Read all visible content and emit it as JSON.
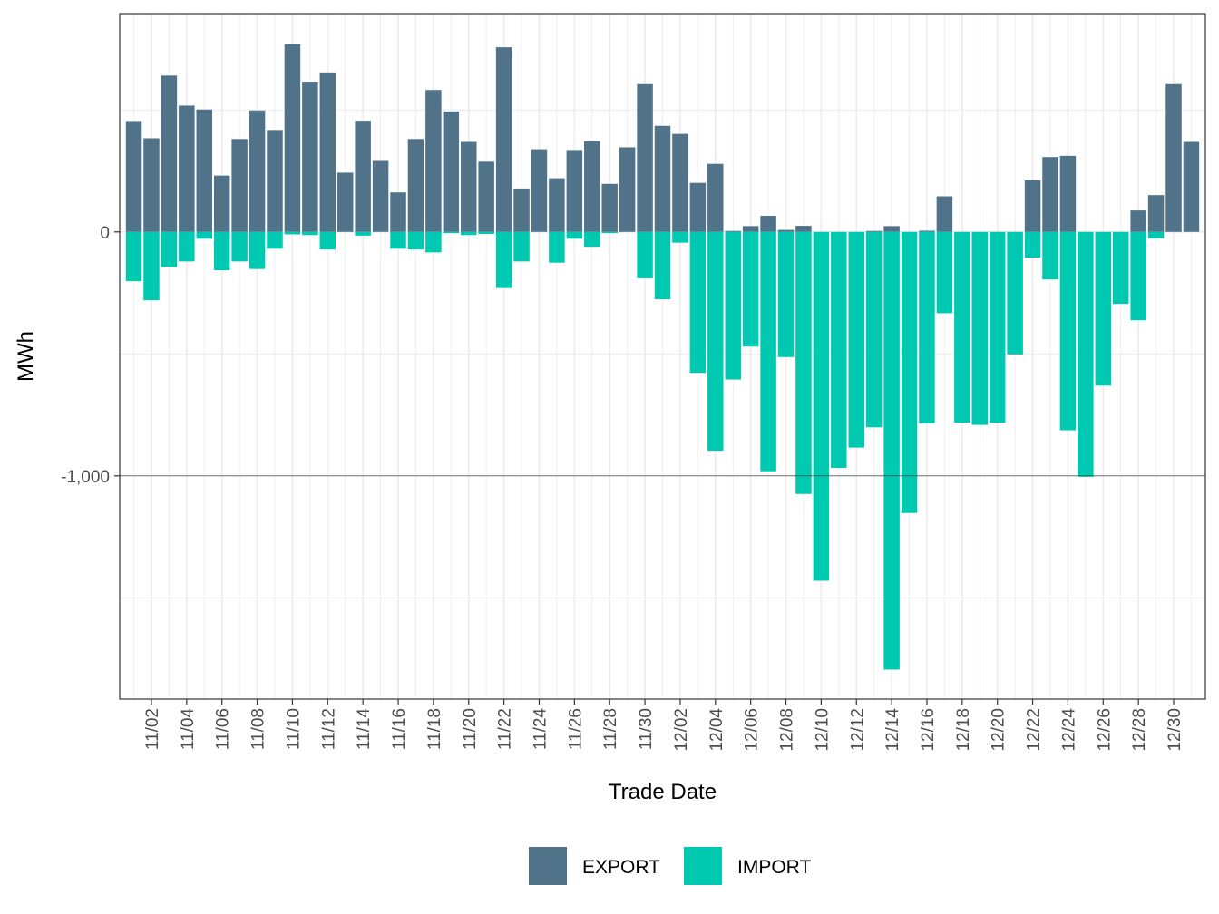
{
  "chart_data": {
    "type": "bar",
    "stacked": true,
    "xlabel": "Trade Date",
    "ylabel": "MWh",
    "y_ticks": [
      0,
      -1000
    ],
    "y_tick_labels": [
      "0",
      "-1,000"
    ],
    "ylim": [
      -1915,
      895
    ],
    "legend_position": "bottom",
    "x_tick_labels": [
      "11/02",
      "11/04",
      "11/06",
      "11/08",
      "11/10",
      "11/12",
      "11/14",
      "11/16",
      "11/18",
      "11/20",
      "11/22",
      "11/24",
      "11/26",
      "11/28",
      "11/30",
      "12/02",
      "12/04",
      "12/06",
      "12/08",
      "12/10",
      "12/12",
      "12/14",
      "12/16",
      "12/18",
      "12/20",
      "12/22",
      "12/24",
      "12/26",
      "12/28",
      "12/30"
    ],
    "categories": [
      "11/01",
      "11/02",
      "11/03",
      "11/04",
      "11/05",
      "11/06",
      "11/07",
      "11/08",
      "11/09",
      "11/10",
      "11/11",
      "11/12",
      "11/13",
      "11/14",
      "11/15",
      "11/16",
      "11/17",
      "11/18",
      "11/19",
      "11/20",
      "11/21",
      "11/22",
      "11/23",
      "11/24",
      "11/25",
      "11/26",
      "11/27",
      "11/28",
      "11/29",
      "11/30",
      "12/01",
      "12/02",
      "12/03",
      "12/04",
      "12/05",
      "12/06",
      "12/07",
      "12/08",
      "12/09",
      "12/10",
      "12/11",
      "12/12",
      "12/13",
      "12/14",
      "12/15",
      "12/16",
      "12/17",
      "12/18",
      "12/19",
      "12/20",
      "12/21",
      "12/22",
      "12/23",
      "12/24",
      "12/25",
      "12/26",
      "12/27",
      "12/28",
      "12/29",
      "12/30",
      "12/31"
    ],
    "series": [
      {
        "name": "EXPORT",
        "color": "#51738a",
        "values": [
          455,
          384,
          641,
          518,
          502,
          231,
          381,
          498,
          418,
          771,
          616,
          654,
          243,
          456,
          291,
          162,
          381,
          582,
          494,
          369,
          288,
          757,
          178,
          339,
          220,
          336,
          372,
          197,
          347,
          606,
          435,
          402,
          201,
          279,
          4,
          24,
          66,
          8,
          25,
          0,
          0,
          0,
          4,
          24,
          0,
          5,
          146,
          0,
          0,
          0,
          0,
          212,
          307,
          312,
          0,
          0,
          0,
          88,
          151,
          606,
          369
        ]
      },
      {
        "name": "IMPORT",
        "color": "#00c9b2",
        "values": [
          -202,
          -280,
          -144,
          -121,
          -28,
          -157,
          -121,
          -152,
          -69,
          -10,
          -13,
          -72,
          0,
          -15,
          0,
          -69,
          -72,
          -84,
          -5,
          -13,
          -8,
          -230,
          -121,
          0,
          -126,
          -28,
          -61,
          -5,
          0,
          -190,
          -276,
          -44,
          -578,
          -897,
          -605,
          -470,
          -981,
          -513,
          -1074,
          -1430,
          -967,
          -884,
          -801,
          -1794,
          -1152,
          -785,
          -333,
          -782,
          -791,
          -782,
          -502,
          -105,
          -195,
          -813,
          -1004,
          -630,
          -295,
          -362,
          -26,
          0,
          0
        ]
      }
    ]
  }
}
